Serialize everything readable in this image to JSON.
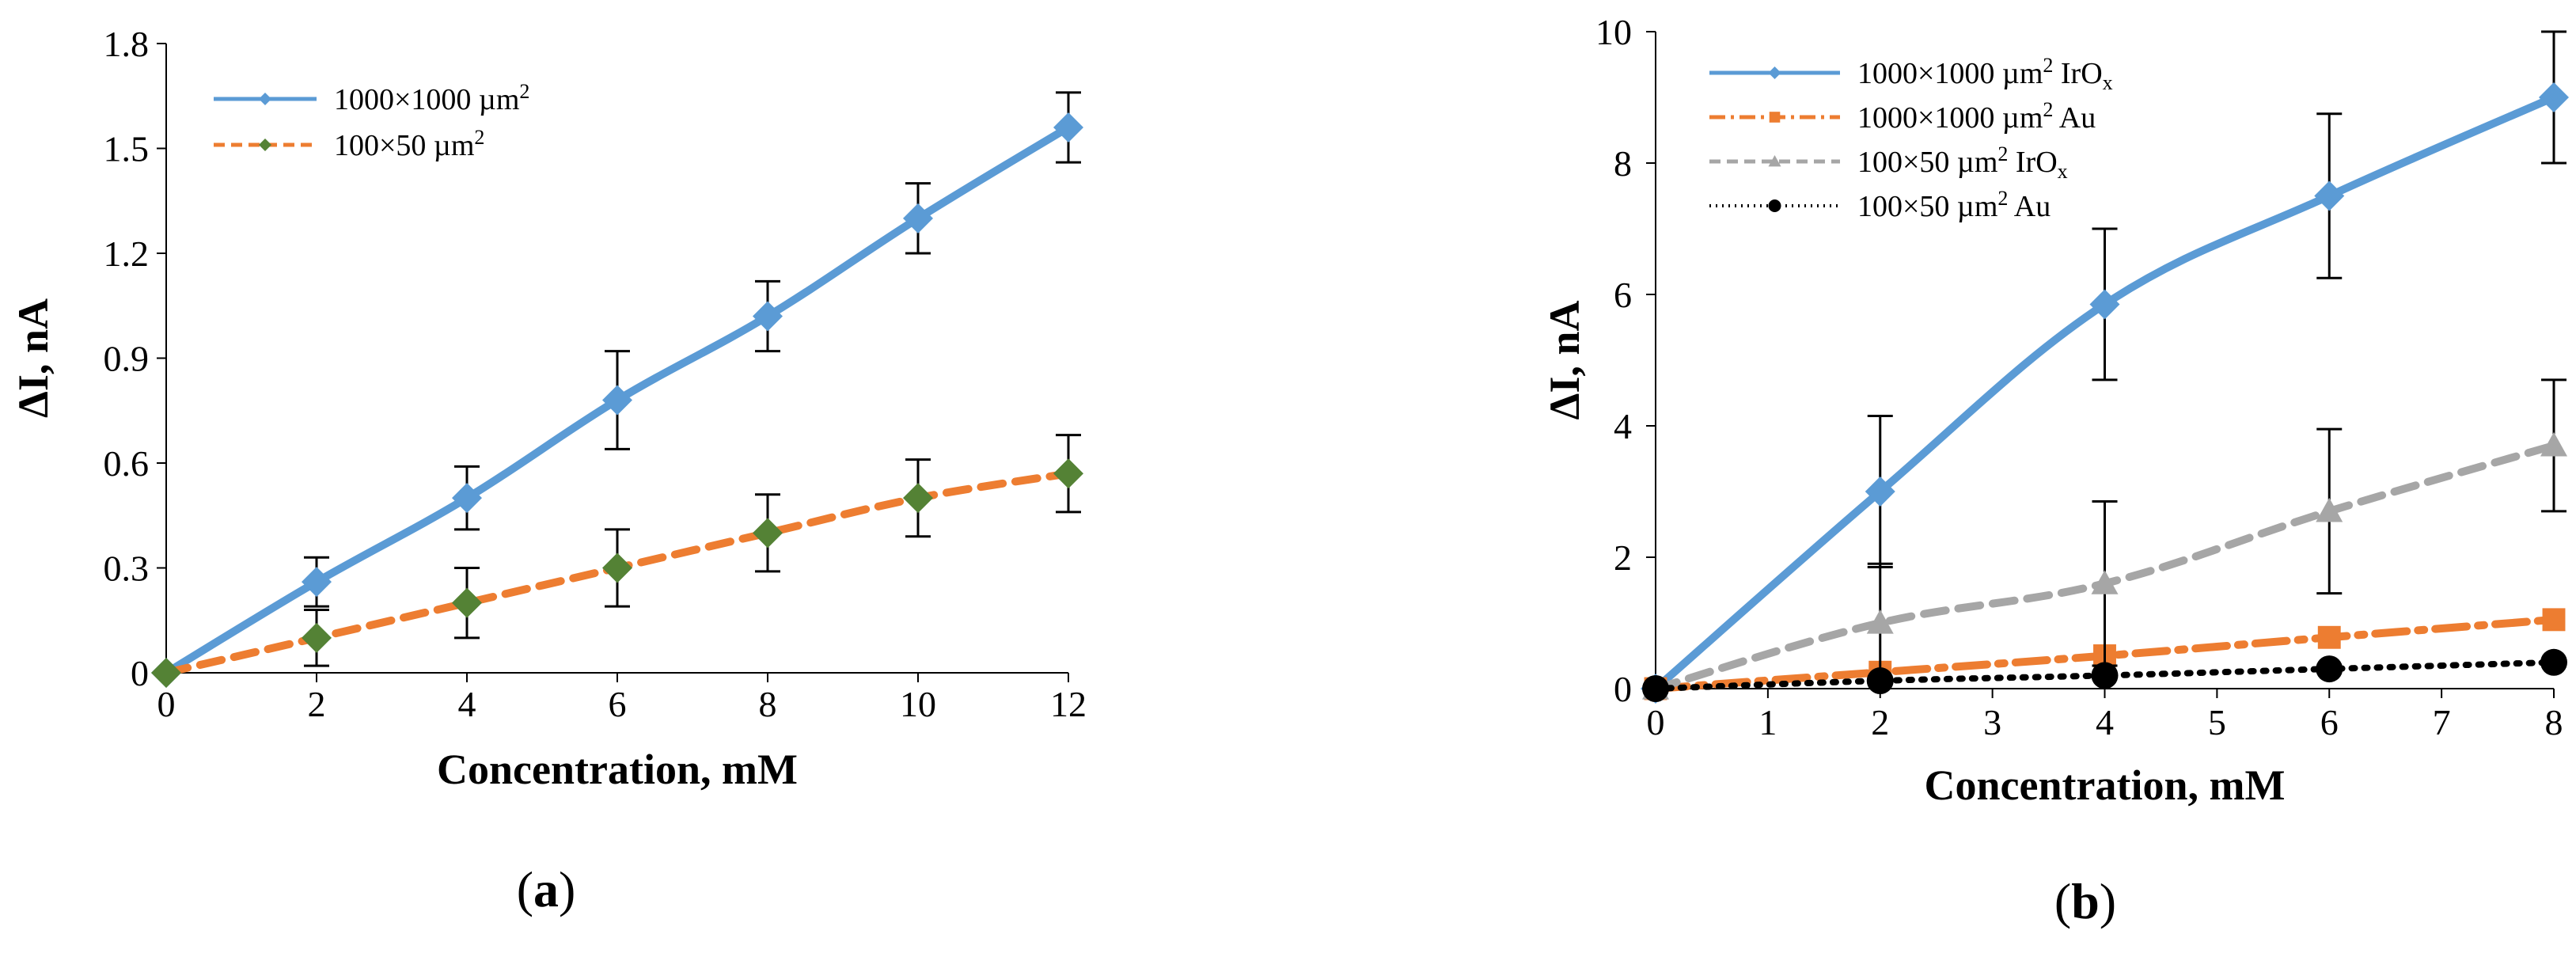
{
  "colors": {
    "blue": "#5b9bd5",
    "orange": "#ed7d31",
    "gray": "#a6a6a6",
    "black": "#000000",
    "green": "#548235"
  },
  "chart_data": [
    {
      "type": "line",
      "panel_label": "a",
      "title": "",
      "xlabel": "Concentration, mM",
      "ylabel": "ΔI, nA",
      "xlim": [
        0,
        12
      ],
      "ylim": [
        0,
        1.8
      ],
      "xticks": [
        "0",
        "2",
        "4",
        "6",
        "8",
        "10",
        "12"
      ],
      "yticks": [
        "0",
        "0.3",
        "0.6",
        "0.9",
        "1.2",
        "1.5",
        "1.8"
      ],
      "legend_position": "top-left",
      "grid": false,
      "series": [
        {
          "name": "1000×1000 µm",
          "name_sup": "2",
          "name_sub": "",
          "name_suffix": "",
          "color": "#5b9bd5",
          "dash": "",
          "width": 10,
          "marker": "diamond",
          "marker_color": "#5b9bd5",
          "x": [
            0,
            2,
            4,
            6,
            8,
            10,
            12
          ],
          "y": [
            0,
            0.26,
            0.5,
            0.78,
            1.02,
            1.3,
            1.56
          ],
          "err": [
            0,
            0.07,
            0.09,
            0.14,
            0.1,
            0.1,
            0.1
          ]
        },
        {
          "name": "100×50 µm",
          "name_sup": "2",
          "name_sub": "",
          "name_suffix": "",
          "color": "#ed7d31",
          "dash": "28 16",
          "width": 10,
          "marker": "diamond",
          "marker_color": "#548235",
          "x": [
            0,
            2,
            4,
            6,
            8,
            10,
            12
          ],
          "y": [
            0,
            0.1,
            0.2,
            0.3,
            0.4,
            0.5,
            0.57
          ],
          "err": [
            0,
            0.08,
            0.1,
            0.11,
            0.11,
            0.11,
            0.11
          ]
        }
      ]
    },
    {
      "type": "line",
      "panel_label": "b",
      "title": "",
      "xlabel": "Concentration, mM",
      "ylabel": "ΔI, nA",
      "xlim": [
        0,
        8
      ],
      "ylim": [
        0,
        10
      ],
      "xticks": [
        "0",
        "1",
        "2",
        "3",
        "4",
        "5",
        "6",
        "7",
        "8"
      ],
      "yticks": [
        "0",
        "2",
        "4",
        "6",
        "8",
        "10"
      ],
      "legend_position": "top-left",
      "grid": false,
      "series": [
        {
          "name": "1000×1000 µm",
          "name_sup": "2",
          "name_sub": "x",
          "name_suffix": " IrO",
          "color": "#5b9bd5",
          "dash": "",
          "width": 10,
          "marker": "diamond",
          "marker_color": "#5b9bd5",
          "x": [
            0,
            2,
            4,
            6,
            8
          ],
          "y": [
            0,
            3.0,
            5.85,
            7.5,
            9.0
          ],
          "err": [
            0,
            1.15,
            1.15,
            1.25,
            1.0
          ]
        },
        {
          "name": "1000×1000 µm",
          "name_sup": "2",
          "name_sub": "",
          "name_suffix": " Au",
          "color": "#ed7d31",
          "dash": "40 14 8 14",
          "width": 10,
          "marker": "square",
          "marker_color": "#ed7d31",
          "x": [
            0,
            2,
            4,
            6,
            8
          ],
          "y": [
            0,
            0.25,
            0.5,
            0.78,
            1.05
          ],
          "err": [
            0,
            0,
            0,
            0,
            0
          ]
        },
        {
          "name": "100×50 µm",
          "name_sup": "2",
          "name_sub": "x",
          "name_suffix": " IrO",
          "color": "#a6a6a6",
          "dash": "28 16",
          "width": 10,
          "marker": "triangle",
          "marker_color": "#a6a6a6",
          "x": [
            0,
            2,
            4,
            6,
            8
          ],
          "y": [
            0,
            1.0,
            1.6,
            2.7,
            3.7
          ],
          "err": [
            0,
            0.9,
            1.25,
            1.25,
            1.0
          ]
        },
        {
          "name": "100×50 µm",
          "name_sup": "2",
          "name_sub": "",
          "name_suffix": " Au",
          "color": "#000000",
          "dash": "4 12",
          "width": 8,
          "marker": "circle",
          "marker_color": "#000000",
          "x": [
            0,
            2,
            4,
            6,
            8
          ],
          "y": [
            0,
            0.12,
            0.2,
            0.3,
            0.4
          ],
          "err": [
            0,
            0,
            0,
            0,
            0
          ]
        }
      ]
    }
  ]
}
